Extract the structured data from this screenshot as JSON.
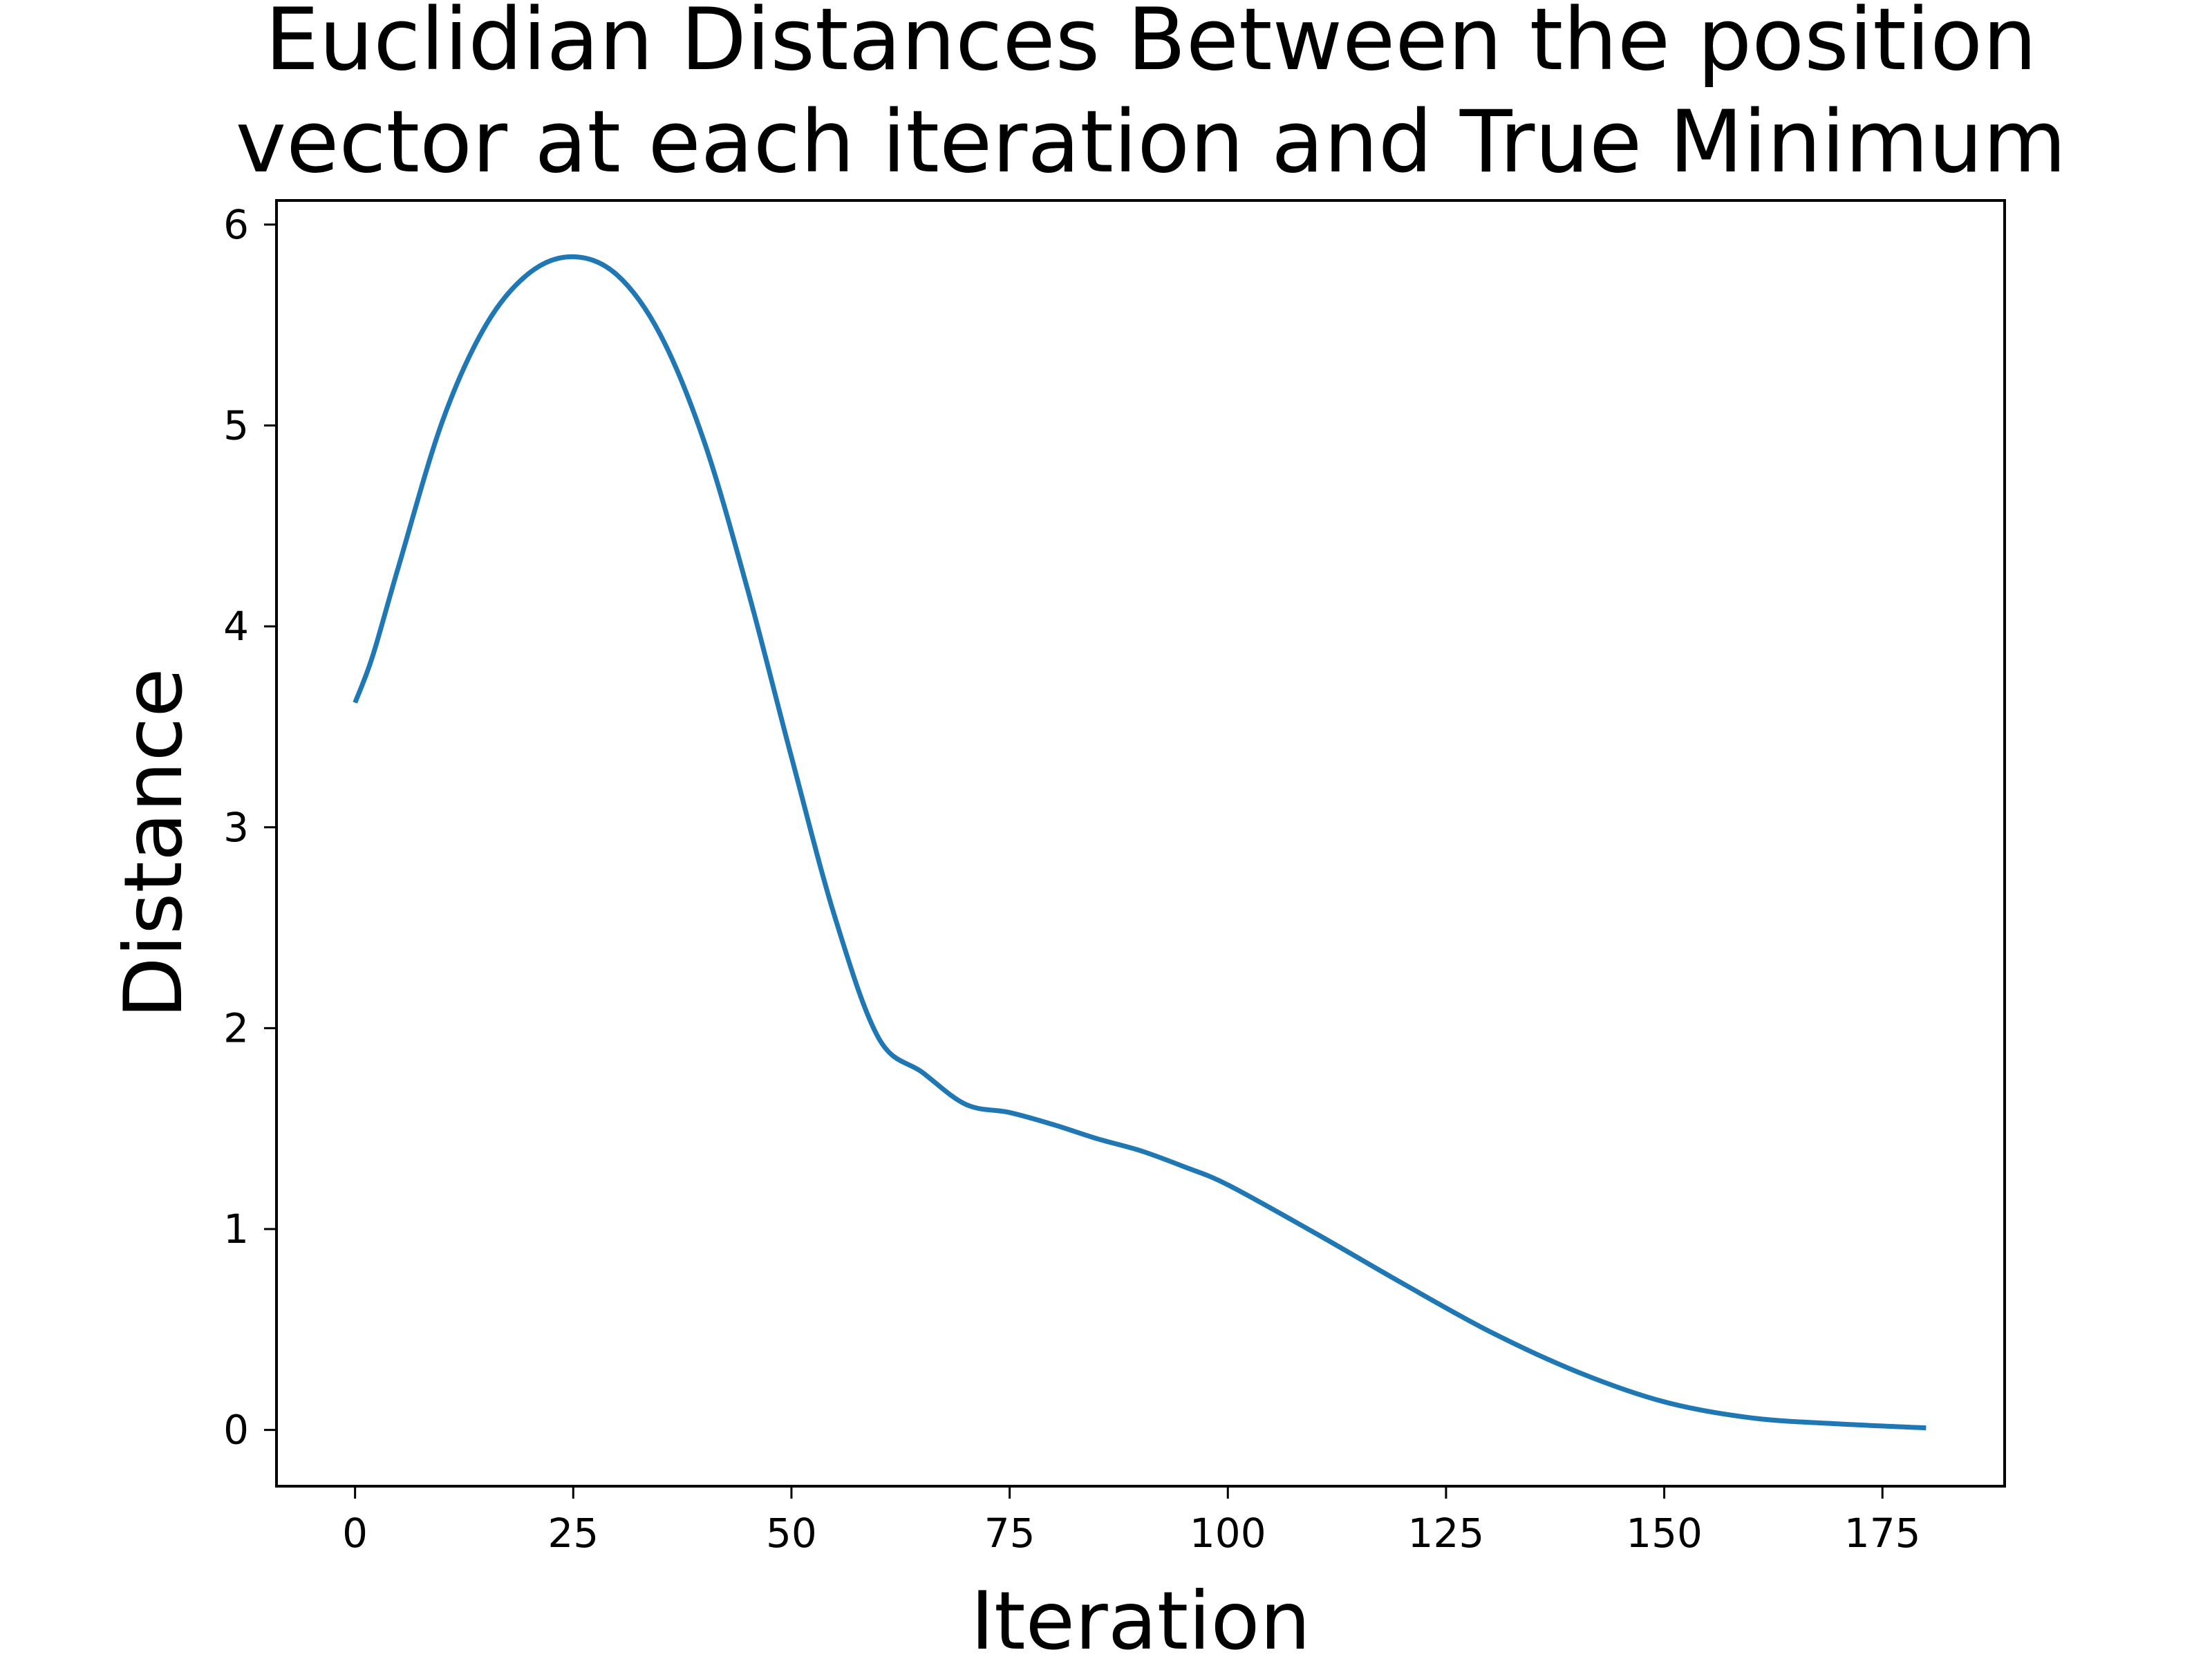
{
  "chart_data": {
    "type": "line",
    "title_lines": [
      "Euclidian Distances Between the position",
      "vector at each iteration and True Minimum"
    ],
    "xlabel": "Iteration",
    "ylabel": "Distance",
    "xlim": [
      -9,
      189
    ],
    "ylim": [
      -0.28,
      6.12
    ],
    "xticks": [
      0,
      25,
      50,
      75,
      100,
      125,
      150,
      175
    ],
    "yticks": [
      0,
      1,
      2,
      3,
      4,
      5,
      6
    ],
    "grid": false,
    "legend": "none",
    "series": [
      {
        "color": "#1f77b4",
        "x": [
          0,
          2,
          5,
          10,
          15,
          20,
          25,
          30,
          35,
          40,
          45,
          50,
          55,
          60,
          65,
          70,
          75,
          80,
          85,
          90,
          95,
          100,
          110,
          120,
          130,
          140,
          150,
          160,
          170,
          180
        ],
        "y": [
          3.62,
          3.85,
          4.3,
          5.02,
          5.5,
          5.76,
          5.84,
          5.75,
          5.45,
          4.92,
          4.18,
          3.35,
          2.55,
          1.95,
          1.78,
          1.62,
          1.58,
          1.52,
          1.45,
          1.39,
          1.31,
          1.22,
          0.98,
          0.73,
          0.49,
          0.29,
          0.14,
          0.06,
          0.03,
          0.01
        ]
      }
    ]
  }
}
